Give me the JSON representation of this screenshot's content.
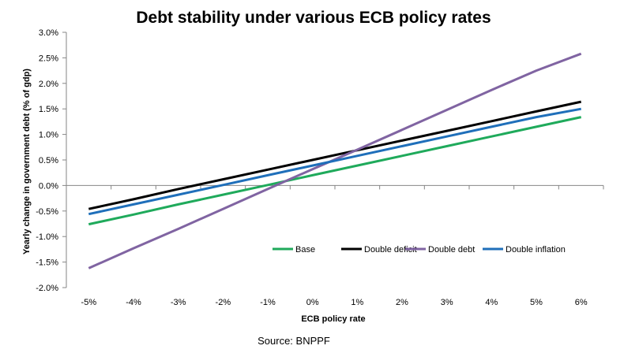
{
  "chart_data": {
    "type": "line",
    "title": "Debt stability under various ECB policy rates",
    "xlabel": "ECB policy rate",
    "ylabel": "Yearly change in government debt (% of gdp)",
    "source": "Source: BNPPF",
    "categories": [
      "-5%",
      "-4%",
      "-3%",
      "-2%",
      "-1%",
      "0%",
      "1%",
      "2%",
      "3%",
      "4%",
      "5%",
      "6%"
    ],
    "y_ticks": [
      "3.0%",
      "2.5%",
      "2.0%",
      "1.5%",
      "1.0%",
      "0.5%",
      "0.0%",
      "-0.5%",
      "-1.0%",
      "-1.5%",
      "-2.0%"
    ],
    "ylim": [
      -2.0,
      3.0
    ],
    "grid": false,
    "legend_position": "bottom-right",
    "series": [
      {
        "name": "Base",
        "color": "#1faa5b",
        "values": [
          -0.76,
          -0.57,
          -0.37,
          -0.18,
          0.01,
          0.2,
          0.39,
          0.58,
          0.77,
          0.96,
          1.15,
          1.34
        ]
      },
      {
        "name": "Double deficit",
        "color": "#000000",
        "values": [
          -0.46,
          -0.27,
          -0.07,
          0.12,
          0.31,
          0.5,
          0.69,
          0.88,
          1.07,
          1.26,
          1.45,
          1.64
        ]
      },
      {
        "name": "Double debt",
        "color": "#8064a2",
        "values": [
          -1.62,
          -1.23,
          -0.85,
          -0.46,
          -0.07,
          0.32,
          0.7,
          1.09,
          1.48,
          1.87,
          2.25,
          2.58
        ]
      },
      {
        "name": "Double inflation",
        "color": "#1f6fba",
        "values": [
          -0.56,
          -0.37,
          -0.18,
          0.01,
          0.2,
          0.39,
          0.58,
          0.77,
          0.96,
          1.15,
          1.34,
          1.5
        ]
      }
    ]
  }
}
